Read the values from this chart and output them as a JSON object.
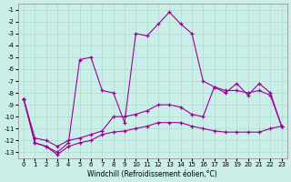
{
  "xlabel": "Windchill (Refroidissement éolien,°C)",
  "x_values": [
    0,
    1,
    2,
    3,
    4,
    5,
    6,
    7,
    8,
    9,
    10,
    11,
    12,
    13,
    14,
    15,
    16,
    17,
    18,
    19,
    20,
    21,
    22,
    23
  ],
  "line_top": [
    -8.5,
    -12.2,
    -12.5,
    -13.0,
    -12.2,
    -5.2,
    -5.0,
    -7.8,
    -8.0,
    -10.5,
    -3.0,
    -3.2,
    -2.2,
    -1.2,
    -2.2,
    -3.0,
    -7.0,
    -7.5,
    -8.0,
    -7.2,
    -8.2,
    -7.2,
    -8.0,
    -10.8
  ],
  "line_mid": [
    -8.5,
    -11.8,
    -12.0,
    -12.5,
    -12.0,
    -11.8,
    -11.5,
    -11.2,
    -10.0,
    -10.0,
    -9.8,
    -9.5,
    -9.0,
    -9.0,
    -9.2,
    -9.8,
    -10.0,
    -7.5,
    -7.8,
    -7.8,
    -8.0,
    -7.8,
    -8.2,
    -10.8
  ],
  "line_bot": [
    -8.5,
    -12.2,
    -12.5,
    -13.2,
    -12.5,
    -12.2,
    -12.0,
    -11.5,
    -11.3,
    -11.2,
    -11.0,
    -10.8,
    -10.5,
    -10.5,
    -10.5,
    -10.8,
    -11.0,
    -11.2,
    -11.3,
    -11.3,
    -11.3,
    -11.3,
    -11.0,
    -10.8
  ],
  "background_color": "#cceee8",
  "grid_color": "#aaddcc",
  "line_color": "#990099",
  "xlim_min": -0.5,
  "xlim_max": 23.5,
  "ylim_min": -13.5,
  "ylim_max": -0.5,
  "yticks": [
    -1,
    -2,
    -3,
    -4,
    -5,
    -6,
    -7,
    -8,
    -9,
    -10,
    -11,
    -12,
    -13
  ],
  "xticks": [
    0,
    1,
    2,
    3,
    4,
    5,
    6,
    7,
    8,
    9,
    10,
    11,
    12,
    13,
    14,
    15,
    16,
    17,
    18,
    19,
    20,
    21,
    22,
    23
  ],
  "tick_fontsize": 5,
  "xlabel_fontsize": 5.5
}
